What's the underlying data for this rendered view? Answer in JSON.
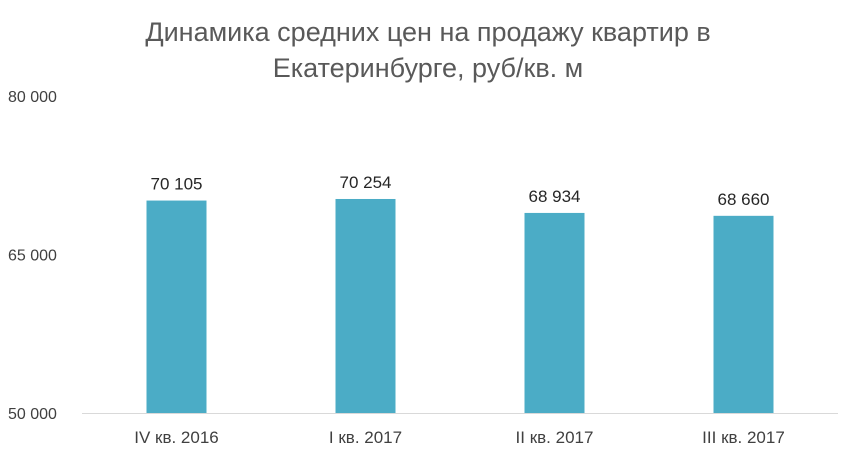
{
  "chart_data": {
    "type": "bar",
    "title_lines": [
      "Динамика средних цен на продажу квартир в",
      "Екатеринбурге, руб/кв. м"
    ],
    "categories": [
      "IV кв. 2016",
      "I кв. 2017",
      "II кв. 2017",
      "III кв. 2017"
    ],
    "values": [
      70105,
      70254,
      68934,
      68660
    ],
    "value_labels": [
      "70 105",
      "70 254",
      "68 934",
      "68 660"
    ],
    "ylim": [
      50000,
      80000
    ],
    "yticks": [
      50000,
      65000,
      80000
    ],
    "ytick_labels": [
      "50 000",
      "65 000",
      "80 000"
    ],
    "grid": false,
    "legend": "none",
    "bar_color": "#4BACC6"
  }
}
